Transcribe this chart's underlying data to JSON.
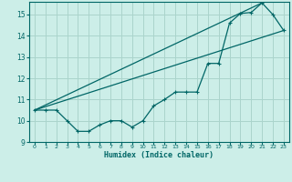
{
  "xlabel": "Humidex (Indice chaleur)",
  "bg_color": "#cceee8",
  "grid_color": "#aad4cc",
  "line_color": "#006666",
  "xlim": [
    -0.5,
    23.5
  ],
  "ylim": [
    9,
    15.6
  ],
  "yticks": [
    9,
    10,
    11,
    12,
    13,
    14,
    15
  ],
  "xticks": [
    0,
    1,
    2,
    3,
    4,
    5,
    6,
    7,
    8,
    9,
    10,
    11,
    12,
    13,
    14,
    15,
    16,
    17,
    18,
    19,
    20,
    21,
    22,
    23
  ],
  "line1_x": [
    0,
    1,
    2,
    3,
    4,
    5,
    6,
    7,
    8,
    9,
    10,
    11,
    12,
    13,
    14,
    15,
    16,
    17,
    18,
    19,
    20,
    21,
    22,
    23
  ],
  "line1_y": [
    10.5,
    10.5,
    10.5,
    10.0,
    9.5,
    9.5,
    9.8,
    10.0,
    10.0,
    9.7,
    10.0,
    10.7,
    11.0,
    11.35,
    11.35,
    11.35,
    12.7,
    12.7,
    14.6,
    15.05,
    15.1,
    15.55,
    15.0,
    14.25
  ],
  "line2_x": [
    0,
    23
  ],
  "line2_y": [
    10.5,
    14.25
  ],
  "line3_x": [
    0,
    21
  ],
  "line3_y": [
    10.5,
    15.55
  ]
}
